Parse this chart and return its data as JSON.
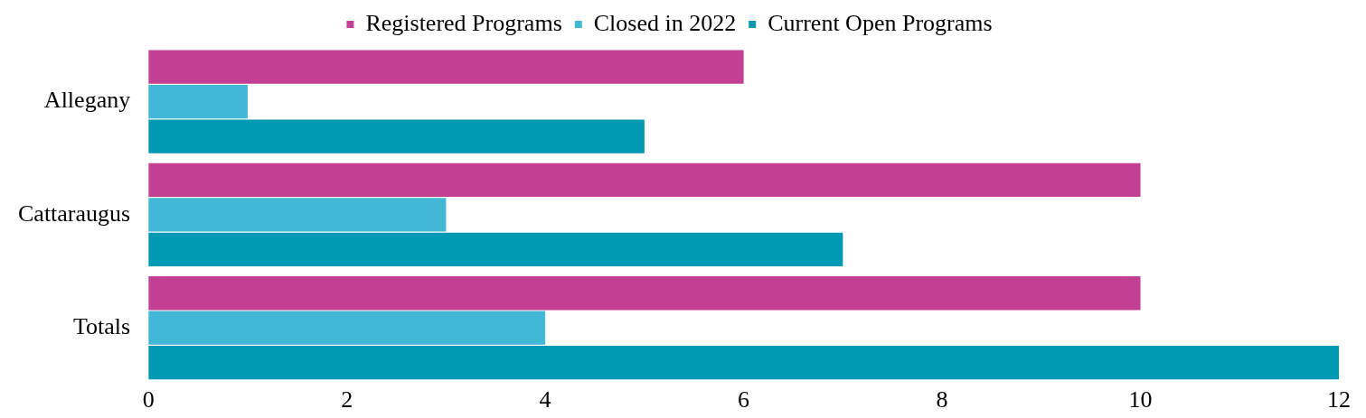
{
  "chart_data": {
    "type": "bar",
    "orientation": "horizontal",
    "categories": [
      "Allegany",
      "Cattaraugus",
      "Totals"
    ],
    "series": [
      {
        "name": "Registered Programs",
        "color": "#c23f94",
        "values": [
          6,
          10,
          10
        ]
      },
      {
        "name": "Closed in 2022",
        "color": "#42b8d6",
        "values": [
          1,
          3,
          4
        ]
      },
      {
        "name": "Current Open Programs",
        "color": "#0099b4",
        "values": [
          5,
          7,
          12
        ]
      }
    ],
    "xlim": [
      0,
      12
    ],
    "xticks": [
      0,
      2,
      4,
      6,
      8,
      10,
      12
    ],
    "grid": false,
    "legend": "top"
  }
}
